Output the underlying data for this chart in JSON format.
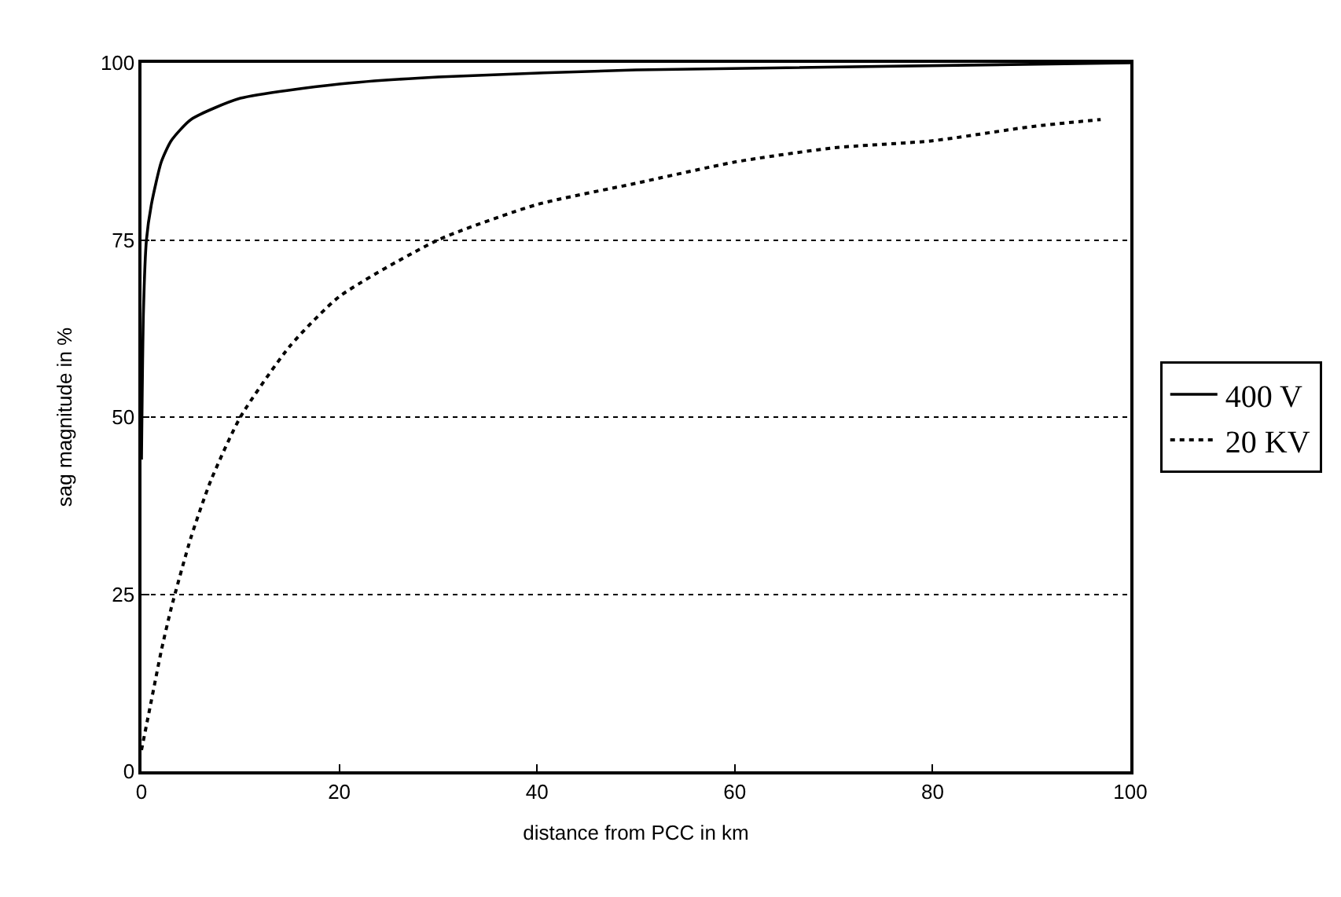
{
  "chart_data": {
    "type": "line",
    "xlabel": "distance from PCC in km",
    "ylabel": "sag magnitude in %",
    "xlim": [
      0,
      100
    ],
    "ylim": [
      0,
      100
    ],
    "xticks": [
      0,
      20,
      40,
      60,
      80,
      100
    ],
    "yticks": [
      0,
      25,
      50,
      75,
      100
    ],
    "grid": "y",
    "legend": "right",
    "marker": "none",
    "series": [
      {
        "name": "400 V",
        "color": "#000000",
        "line_style": "solid",
        "x": [
          0,
          0.2,
          0.5,
          1,
          2,
          3,
          5,
          10,
          20,
          30,
          50,
          100
        ],
        "values": [
          44,
          65,
          75,
          80,
          86,
          89,
          92,
          95,
          97,
          98,
          99,
          100
        ]
      },
      {
        "name": "20 KV",
        "color": "#000000",
        "line_style": "dotted",
        "x": [
          0,
          1,
          2,
          3,
          5,
          7,
          10,
          15,
          20,
          30,
          40,
          50,
          60,
          70,
          80,
          90,
          97
        ],
        "values": [
          3,
          10,
          17,
          23,
          33,
          41,
          50,
          60,
          67,
          75,
          80,
          83,
          86,
          88,
          89,
          91,
          92
        ]
      }
    ]
  }
}
